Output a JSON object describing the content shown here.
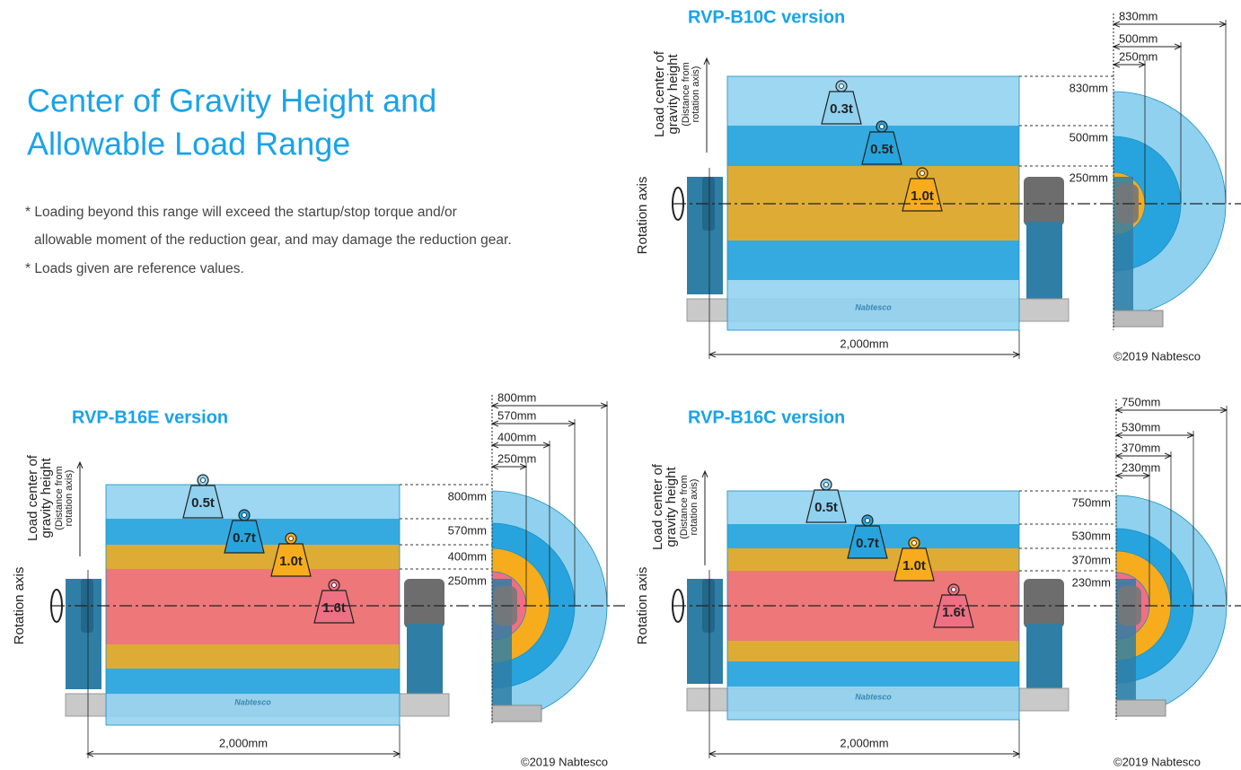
{
  "header": {
    "title": [
      "Center of Gravity Height and",
      "Allowable Load Range"
    ]
  },
  "notes": [
    "* Loading beyond this range will exceed the startup/stop torque and/or",
    "allowable moment of the reduction gear, and may damage the reduction gear.",
    "* Loads given are reference values."
  ],
  "diagrams": [
    {
      "title": "RVP-B10C version",
      "y_label": [
        "Load center of",
        "gravity height",
        "(Distance from",
        "rotation axis)"
      ],
      "rotation_axis": "Rotation axis",
      "levels": [
        "830mm",
        "500mm",
        "250mm"
      ],
      "weights": [
        "0.3t",
        "0.5t",
        "1.0t"
      ],
      "width": "2,000mm",
      "logo": "Nabtesco",
      "copyright": "©2019 Nabtesco"
    },
    {
      "title": "RVP-B16E version",
      "y_label": [
        "Load center of",
        "gravity height",
        "(Distance from",
        "rotation axis)"
      ],
      "rotation_axis": "Rotation axis",
      "levels": [
        "800mm",
        "570mm",
        "400mm",
        "250mm"
      ],
      "weights": [
        "0.5t",
        "0.7t",
        "1.0t",
        "1.6t"
      ],
      "width": "2,000mm",
      "logo": "Nabtesco",
      "copyright": "©2019 Nabtesco"
    },
    {
      "title": "RVP-B16C version",
      "y_label": [
        "Load center of",
        "gravity height",
        "(Distance from",
        "rotation axis)"
      ],
      "rotation_axis": "Rotation axis",
      "levels": [
        "750mm",
        "530mm",
        "370mm",
        "230mm"
      ],
      "weights": [
        "0.5t",
        "0.7t",
        "1.0t",
        "1.6t"
      ],
      "width": "2,000mm",
      "logo": "Nabtesco",
      "copyright": "©2019 Nabtesco"
    }
  ]
}
